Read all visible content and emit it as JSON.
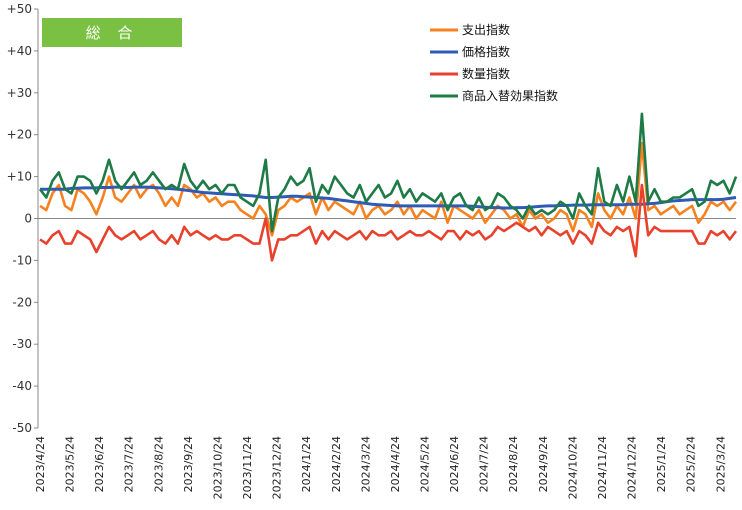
{
  "badge": "総 合",
  "chart_data": {
    "type": "line",
    "title": "",
    "xlabel": "",
    "ylabel": "",
    "ylim": [
      -50,
      50
    ],
    "yticks": [
      "+50",
      "+40",
      "+30",
      "+20",
      "+10",
      "0",
      "-10",
      "-20",
      "-30",
      "-40",
      "-50"
    ],
    "ytick_values": [
      50,
      40,
      30,
      20,
      10,
      0,
      -10,
      -20,
      -30,
      -40,
      -50
    ],
    "x_tick_labels": [
      "2023/4/24",
      "2023/5/24",
      "2023/6/24",
      "2023/7/24",
      "2023/8/24",
      "2023/9/24",
      "2023/10/24",
      "2023/11/24",
      "2023/12/24",
      "2024/1/24",
      "2024/2/24",
      "2024/3/24",
      "2024/4/24",
      "2024/5/24",
      "2024/6/24",
      "2024/7/24",
      "2024/8/24",
      "2024/9/24",
      "2024/10/24",
      "2024/11/24",
      "2024/12/24",
      "2025/1/24",
      "2025/2/24",
      "2025/3/24"
    ],
    "x_interval": "weekly",
    "grid": false,
    "legend_position": "top-right",
    "series": [
      {
        "name": "支出指数",
        "color": "#f5821f",
        "values": [
          3,
          2,
          6,
          8,
          3,
          2,
          7,
          6,
          4,
          1,
          5,
          10,
          5,
          4,
          6,
          8,
          5,
          7,
          8,
          6,
          3,
          5,
          3,
          8,
          7,
          5,
          6,
          4,
          5,
          3,
          4,
          4,
          2,
          1,
          0,
          3,
          1,
          -4,
          2,
          3,
          5,
          4,
          5,
          6,
          1,
          5,
          2,
          4,
          3,
          2,
          1,
          4,
          0,
          2,
          3,
          1,
          2,
          4,
          1,
          3,
          0,
          2,
          1,
          0,
          4,
          -1,
          3,
          2,
          1,
          0,
          2,
          -1,
          1,
          3,
          2,
          0,
          1,
          -2,
          2,
          0,
          1,
          -1,
          0,
          2,
          1,
          -3,
          2,
          1,
          -2,
          6,
          2,
          0,
          3,
          1,
          5,
          0,
          18,
          2,
          3,
          1,
          2,
          3,
          1,
          2,
          3,
          -1,
          1,
          4,
          3,
          4,
          2,
          4
        ]
      },
      {
        "name": "価格指数",
        "color": "#2f5bb7",
        "values": [
          7,
          7,
          7,
          7,
          7,
          7.2,
          7.2,
          7.3,
          7.3,
          7.3,
          7.4,
          7.4,
          7.5,
          7.5,
          7.4,
          7.5,
          7.5,
          7.5,
          7.4,
          7.3,
          7.2,
          7.1,
          7,
          6.8,
          6.6,
          6.4,
          6.2,
          6.1,
          6,
          5.9,
          5.8,
          5.7,
          5.6,
          5.5,
          5.4,
          5.2,
          5,
          5,
          5.1,
          5.2,
          5.3,
          5.3,
          5.2,
          5.1,
          5,
          4.9,
          4.8,
          4.6,
          4.4,
          4.2,
          4,
          3.8,
          3.6,
          3.4,
          3.3,
          3.2,
          3.1,
          3,
          3,
          3,
          3,
          3,
          3,
          3,
          3,
          3,
          3,
          3,
          3,
          2.9,
          2.8,
          2.7,
          2.6,
          2.6,
          2.5,
          2.5,
          2.6,
          2.6,
          2.7,
          2.8,
          2.9,
          3,
          3,
          3.1,
          3.1,
          3.2,
          3.2,
          3.2,
          3.3,
          3.3,
          3.3,
          3.3,
          3.3,
          3.3,
          3.4,
          3.4,
          3.4,
          3.5,
          3.6,
          3.8,
          4,
          4.2,
          4.3,
          4.4,
          4.5,
          4.5,
          4.5,
          4.5,
          4.5,
          4.6,
          4.8,
          5
        ]
      },
      {
        "name": "数量指数",
        "color": "#e8412c",
        "values": [
          -5,
          -6,
          -4,
          -3,
          -6,
          -6,
          -3,
          -4,
          -5,
          -8,
          -5,
          -2,
          -4,
          -5,
          -4,
          -3,
          -5,
          -4,
          -3,
          -5,
          -6,
          -4,
          -6,
          -2,
          -4,
          -3,
          -4,
          -5,
          -4,
          -5,
          -5,
          -4,
          -4,
          -5,
          -6,
          -6,
          0,
          -10,
          -5,
          -5,
          -4,
          -4,
          -3,
          -2,
          -6,
          -3,
          -5,
          -3,
          -4,
          -5,
          -4,
          -3,
          -5,
          -3,
          -4,
          -4,
          -3,
          -5,
          -4,
          -3,
          -4,
          -4,
          -3,
          -4,
          -5,
          -3,
          -3,
          -5,
          -3,
          -4,
          -3,
          -5,
          -4,
          -2,
          -3,
          -2,
          -1,
          -2,
          -3,
          -2,
          -4,
          -2,
          -3,
          -4,
          -3,
          -6,
          -3,
          -4,
          -6,
          -1,
          -3,
          -4,
          -2,
          -3,
          -2,
          -9,
          8,
          -4,
          -2,
          -3,
          -3,
          -3,
          -3,
          -3,
          -3,
          -6,
          -6,
          -3,
          -4,
          -3,
          -5,
          -3
        ]
      },
      {
        "name": "商品入替効果指数",
        "color": "#1e7a46",
        "values": [
          7,
          5,
          9,
          11,
          7,
          6,
          10,
          10,
          9,
          6,
          9,
          14,
          9,
          7,
          9,
          11,
          8,
          9,
          11,
          9,
          7,
          8,
          7,
          13,
          9,
          7,
          9,
          7,
          8,
          6,
          8,
          8,
          5,
          4,
          3,
          6,
          14,
          -3,
          5,
          7,
          10,
          8,
          9,
          12,
          4,
          8,
          6,
          10,
          8,
          6,
          5,
          8,
          4,
          6,
          8,
          5,
          6,
          9,
          5,
          7,
          4,
          6,
          5,
          4,
          6,
          2,
          5,
          6,
          3,
          2,
          5,
          2,
          3,
          6,
          5,
          3,
          2,
          0,
          3,
          1,
          2,
          1,
          2,
          4,
          3,
          0,
          6,
          3,
          1,
          12,
          4,
          3,
          8,
          4,
          10,
          4,
          25,
          4,
          7,
          4,
          4,
          5,
          5,
          6,
          7,
          3,
          4,
          9,
          8,
          9,
          6,
          10
        ]
      }
    ]
  }
}
